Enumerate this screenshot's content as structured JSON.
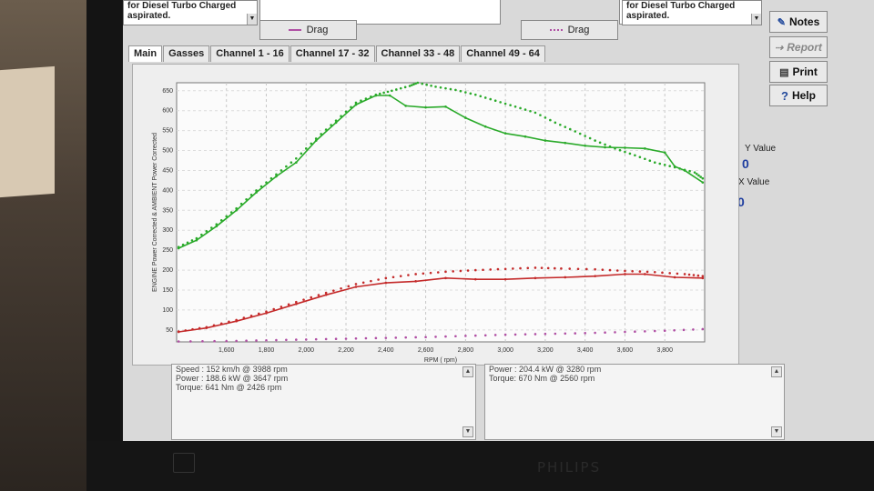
{
  "header": {
    "left_desc_line1": "for Diesel Turbo Charged",
    "left_desc_line2": "aspirated.",
    "right_desc_line1": "for Diesel Turbo Charged",
    "right_desc_line2": "aspirated.",
    "drag_left_label": "Drag",
    "drag_right_label": "Drag"
  },
  "tabs": [
    "Main",
    "Gasses",
    "Channel 1 - 16",
    "Channel 17 - 32",
    "Channel 33 - 48",
    "Channel 49 - 64"
  ],
  "side_buttons": {
    "notes": "Notes",
    "report": "Report",
    "print": "Print",
    "help": "Help"
  },
  "readouts": {
    "y_label": "Y Value",
    "y_value": "0",
    "x_label": "X Value",
    "x_value": "0"
  },
  "info_left": [
    "Speed : 152 km/h @ 3988 rpm",
    "Power : 188.6 kW @ 3647 rpm",
    "Torque: 641 Nm @ 2426 rpm"
  ],
  "info_right": [
    "Power : 204.4 kW @ 3280 rpm",
    "Torque: 670 Nm @ 2560 rpm"
  ],
  "colors": {
    "torque": "#2aaa2a",
    "power": "#c42a2a",
    "drag": "#b04fa4",
    "readout": "#1f3ea0"
  },
  "chart_data": {
    "type": "line",
    "xlabel": "RPM ( rpm)",
    "ylabel": "ENGINE Power Corrected & AMBIENT Power Corrected",
    "xlim": [
      1350,
      4000
    ],
    "ylim": [
      20,
      670
    ],
    "x_ticks": [
      1600,
      1800,
      2000,
      2200,
      2400,
      2600,
      2800,
      3000,
      3200,
      3400,
      3600,
      3800
    ],
    "x_tick_labels": [
      "1,600",
      "1,800",
      "2,000",
      "2,200",
      "2,400",
      "2,600",
      "2,800",
      "3,000",
      "3,200",
      "3,400",
      "3,600",
      "3,800"
    ],
    "y_ticks": [
      50,
      100,
      150,
      200,
      250,
      300,
      350,
      400,
      450,
      500,
      550,
      600,
      650
    ],
    "grid": true,
    "series": [
      {
        "style": "solid",
        "color": "#2aaa2a",
        "x": [
          1360,
          1450,
          1550,
          1650,
          1750,
          1850,
          1950,
          2050,
          2150,
          2250,
          2350,
          2420,
          2500,
          2600,
          2700,
          2800,
          2900,
          3000,
          3100,
          3200,
          3300,
          3400,
          3500,
          3600,
          3700,
          3800,
          3850,
          3900,
          3990
        ],
        "y": [
          255,
          275,
          310,
          350,
          395,
          435,
          470,
          525,
          570,
          615,
          638,
          638,
          612,
          608,
          610,
          582,
          560,
          543,
          535,
          525,
          519,
          512,
          508,
          507,
          505,
          495,
          460,
          450,
          420
        ]
      },
      {
        "style": "dotted",
        "color": "#2aaa2a",
        "x": [
          1360,
          1450,
          1550,
          1650,
          1750,
          1850,
          1950,
          2050,
          2150,
          2250,
          2350,
          2430,
          2520,
          2560,
          2650,
          2750,
          2850,
          2950,
          3050,
          3150,
          3250,
          3350,
          3450,
          3550,
          3650,
          3750,
          3850,
          3950,
          3990
        ],
        "y": [
          258,
          280,
          315,
          355,
          400,
          440,
          480,
          530,
          575,
          620,
          640,
          650,
          662,
          670,
          660,
          652,
          640,
          625,
          610,
          595,
          570,
          548,
          525,
          505,
          488,
          470,
          458,
          445,
          430
        ]
      },
      {
        "style": "solid",
        "color": "#c42a2a",
        "x": [
          1360,
          1500,
          1650,
          1800,
          1950,
          2100,
          2250,
          2400,
          2550,
          2700,
          2850,
          3000,
          3150,
          3300,
          3450,
          3600,
          3700,
          3850,
          3990
        ],
        "y": [
          45,
          55,
          72,
          92,
          115,
          138,
          158,
          168,
          172,
          180,
          177,
          177,
          180,
          182,
          185,
          190,
          190,
          182,
          180
        ]
      },
      {
        "style": "dotted",
        "color": "#c42a2a",
        "x": [
          1360,
          1500,
          1650,
          1800,
          1950,
          2100,
          2250,
          2400,
          2550,
          2700,
          2850,
          3000,
          3150,
          3280,
          3450,
          3600,
          3750,
          3900,
          3990
        ],
        "y": [
          46,
          57,
          75,
          96,
          120,
          143,
          165,
          180,
          190,
          196,
          200,
          203,
          206,
          204,
          202,
          198,
          195,
          190,
          185
        ]
      },
      {
        "style": "dotted",
        "color": "#b04fa4",
        "x": [
          1360,
          1600,
          1800,
          2000,
          2200,
          2400,
          2600,
          2800,
          3000,
          3200,
          3400,
          3600,
          3800,
          3990
        ],
        "y": [
          21,
          22,
          24,
          26,
          28,
          30,
          32,
          35,
          38,
          40,
          42,
          45,
          48,
          52
        ]
      }
    ]
  }
}
